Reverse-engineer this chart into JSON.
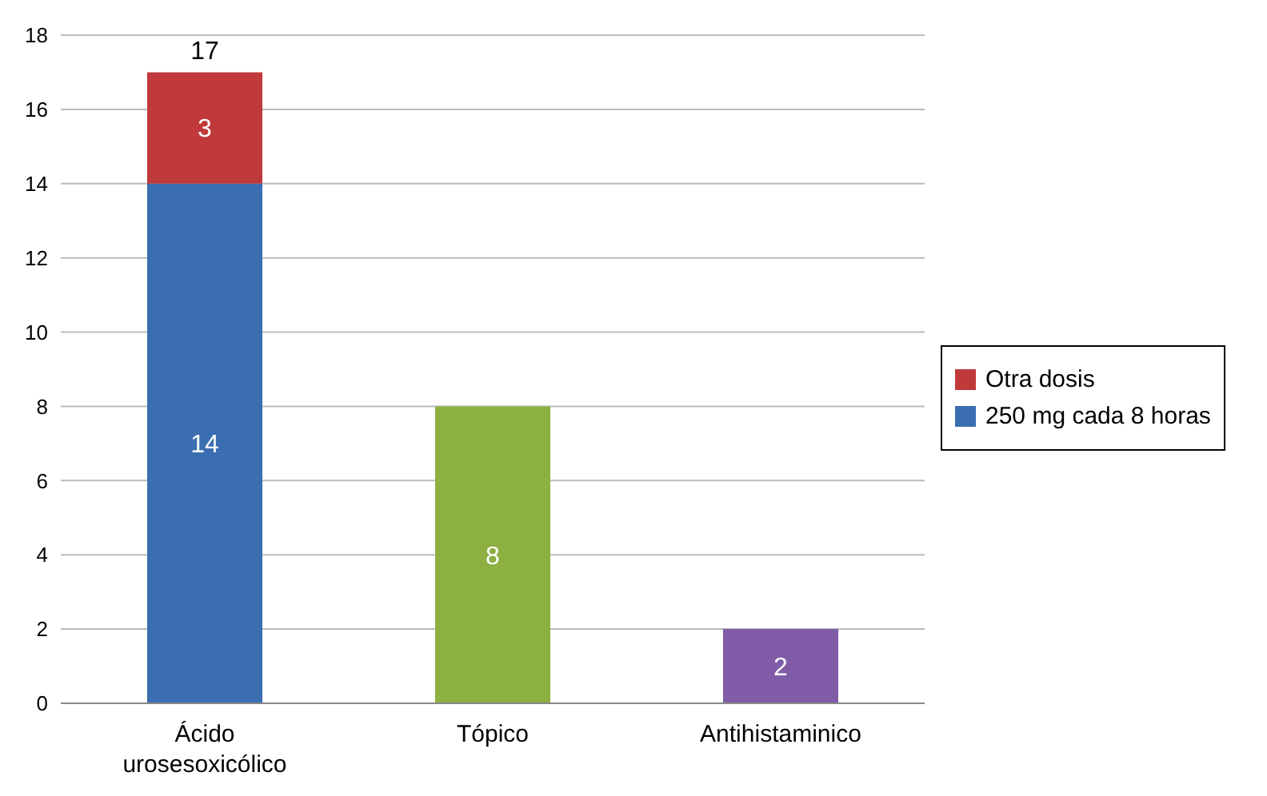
{
  "chart_data": {
    "type": "bar",
    "stacked": true,
    "categories": [
      "Ácido urosesoxicólico",
      "Tópico",
      "Antihistaminico"
    ],
    "series": [
      {
        "name": "250 mg cada 8 horas",
        "color": "#3a6eb0",
        "values": [
          14,
          null,
          null
        ]
      },
      {
        "name": "Otra dosis",
        "color": "#c0393b",
        "values": [
          3,
          null,
          null
        ]
      },
      {
        "color": "#8db043",
        "values": [
          null,
          8,
          null
        ]
      },
      {
        "color": "#7f5ba8",
        "values": [
          null,
          null,
          2
        ]
      }
    ],
    "totals": [
      "17",
      null,
      null
    ],
    "data_labels": true,
    "ylim": [
      0,
      18
    ],
    "yticks": [
      0,
      2,
      4,
      6,
      8,
      10,
      12,
      14,
      16,
      18
    ],
    "grid": "y",
    "legend": "right"
  }
}
